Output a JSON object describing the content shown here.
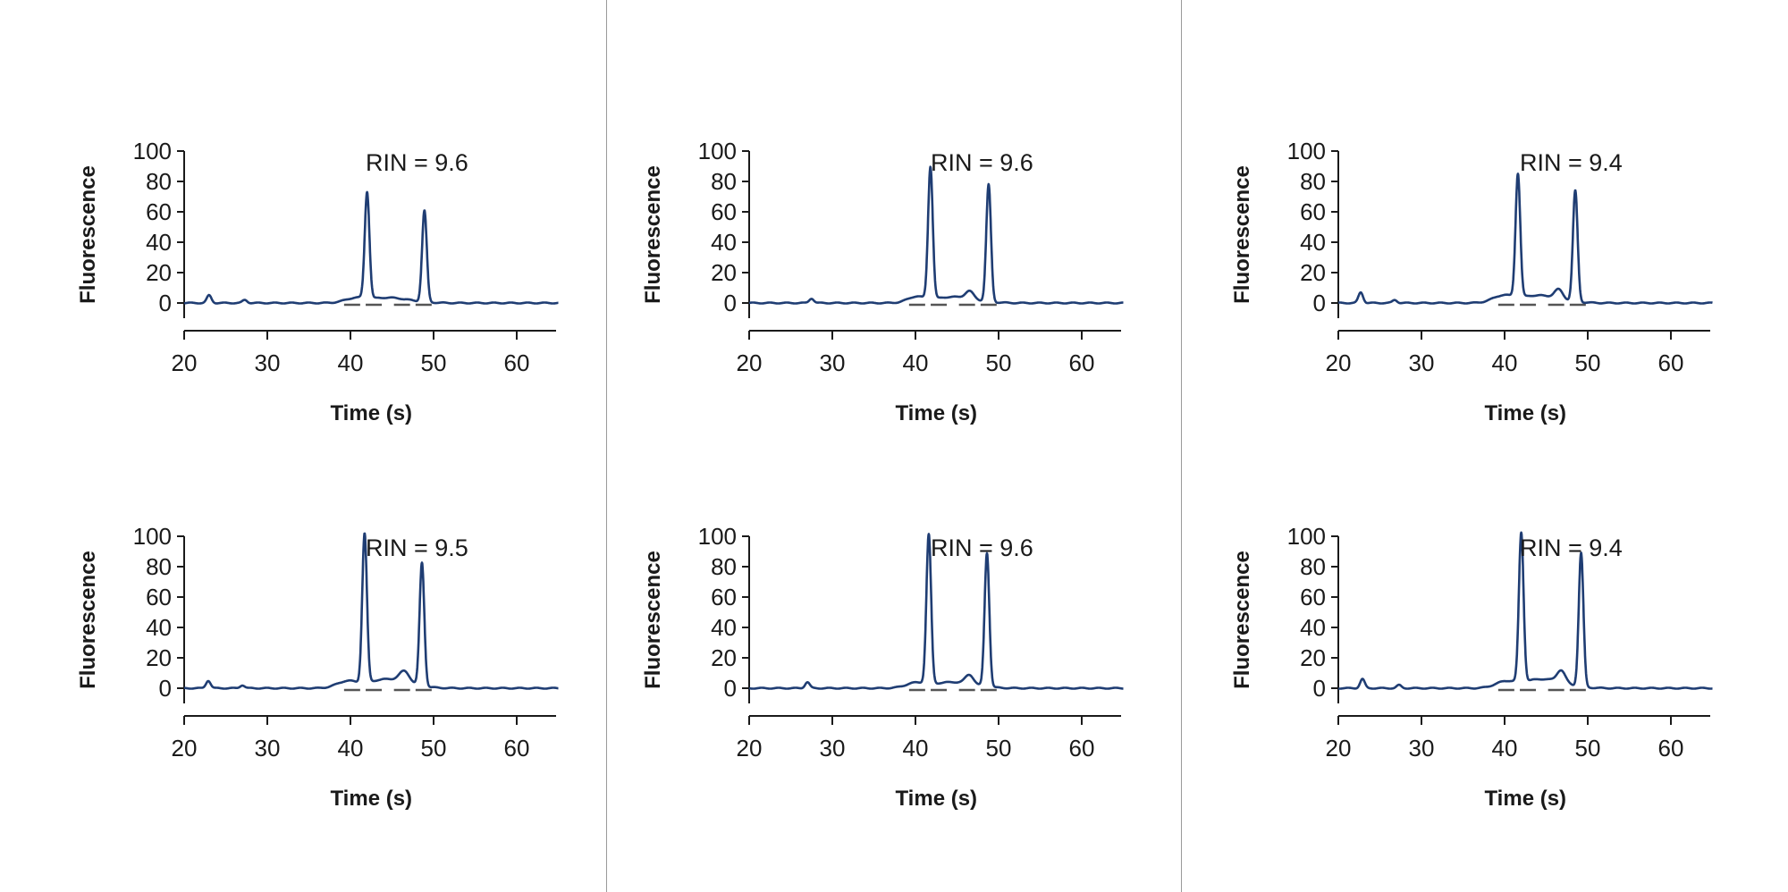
{
  "colors": {
    "trace": "#1f3d73",
    "axis": "#1a1a1a",
    "marker": "#555555",
    "divider": "#9a9a9a"
  },
  "chart_data": [
    {
      "type": "line",
      "title": "",
      "annotation": "RIN = 9.6",
      "xlabel": "Time (s)",
      "ylabel": "Fluorescence",
      "xlim": [
        20,
        65
      ],
      "ylim": [
        -10,
        100
      ],
      "x_ticks": [
        20,
        30,
        40,
        50,
        60
      ],
      "y_ticks": [
        0,
        20,
        40,
        60,
        80,
        100
      ],
      "grid": false,
      "series": [
        {
          "peaks": [
            [
              23.0,
              5
            ],
            [
              27.3,
              2
            ],
            [
              42.0,
              70
            ],
            [
              48.9,
              60
            ]
          ],
          "bumps": [
            [
              40.5,
              2.5,
              1.2
            ],
            [
              44.5,
              3.5,
              2.5
            ]
          ]
        }
      ]
    },
    {
      "type": "line",
      "title": "",
      "annotation": "RIN = 9.6",
      "xlabel": "Time (s)",
      "ylabel": "Fluorescence",
      "xlim": [
        20,
        65
      ],
      "ylim": [
        -10,
        100
      ],
      "x_ticks": [
        20,
        30,
        40,
        50,
        60
      ],
      "y_ticks": [
        0,
        20,
        40,
        60,
        80,
        100
      ],
      "grid": false,
      "series": [
        {
          "peaks": [
            [
              27.5,
              3
            ],
            [
              41.8,
              87
            ],
            [
              48.8,
              77
            ]
          ],
          "bumps": [
            [
              40.0,
              3.5,
              1.0
            ],
            [
              44.5,
              4,
              2.5
            ],
            [
              46.5,
              5,
              0.5
            ]
          ]
        }
      ]
    },
    {
      "type": "line",
      "title": "",
      "annotation": "RIN = 9.4",
      "xlabel": "Time (s)",
      "ylabel": "Fluorescence",
      "xlim": [
        20,
        65
      ],
      "ylim": [
        -10,
        100
      ],
      "x_ticks": [
        20,
        30,
        40,
        50,
        60
      ],
      "y_ticks": [
        0,
        20,
        40,
        60,
        80,
        100
      ],
      "grid": false,
      "series": [
        {
          "peaks": [
            [
              22.7,
              7
            ],
            [
              26.8,
              2
            ],
            [
              41.6,
              81
            ],
            [
              48.5,
              73
            ]
          ],
          "bumps": [
            [
              39.7,
              4,
              1.2
            ],
            [
              44.0,
              5,
              2.5
            ],
            [
              46.5,
              6,
              0.5
            ]
          ]
        }
      ]
    },
    {
      "type": "line",
      "title": "",
      "annotation": "RIN = 9.5",
      "xlabel": "Time (s)",
      "ylabel": "Fluorescence",
      "xlim": [
        20,
        65
      ],
      "ylim": [
        -10,
        100
      ],
      "x_ticks": [
        20,
        30,
        40,
        50,
        60
      ],
      "y_ticks": [
        0,
        20,
        40,
        60,
        80,
        100
      ],
      "grid": false,
      "series": [
        {
          "peaks": [
            [
              22.9,
              5
            ],
            [
              27.0,
              2
            ],
            [
              41.7,
              98
            ],
            [
              48.6,
              81
            ]
          ],
          "bumps": [
            [
              39.5,
              4,
              1.2
            ],
            [
              44.5,
              6,
              2.5
            ],
            [
              46.5,
              7,
              0.6
            ]
          ]
        }
      ]
    },
    {
      "type": "line",
      "title": "",
      "annotation": "RIN = 9.6",
      "xlabel": "Time (s)",
      "ylabel": "Fluorescence",
      "xlim": [
        20,
        65
      ],
      "ylim": [
        -10,
        100
      ],
      "x_ticks": [
        20,
        30,
        40,
        50,
        60
      ],
      "y_ticks": [
        0,
        20,
        40,
        60,
        80,
        100
      ],
      "grid": false,
      "series": [
        {
          "peaks": [
            [
              27.0,
              4
            ],
            [
              41.6,
              98
            ],
            [
              48.6,
              88
            ]
          ],
          "bumps": [
            [
              40.0,
              3,
              1.2
            ],
            [
              44.5,
              4,
              2.5
            ],
            [
              46.5,
              6,
              0.5
            ]
          ]
        }
      ]
    },
    {
      "type": "line",
      "title": "",
      "annotation": "RIN = 9.4",
      "xlabel": "Time (s)",
      "ylabel": "Fluorescence",
      "xlim": [
        20,
        65
      ],
      "ylim": [
        -10,
        100
      ],
      "x_ticks": [
        20,
        30,
        40,
        50,
        60
      ],
      "y_ticks": [
        0,
        20,
        40,
        60,
        80,
        100
      ],
      "grid": false,
      "series": [
        {
          "peaks": [
            [
              22.9,
              6
            ],
            [
              27.3,
              2
            ],
            [
              42.0,
              98
            ],
            [
              49.2,
              88
            ]
          ],
          "bumps": [
            [
              40.0,
              3.5,
              1.2
            ],
            [
              44.5,
              6,
              2.5
            ],
            [
              46.8,
              8,
              0.5
            ]
          ]
        }
      ]
    }
  ]
}
